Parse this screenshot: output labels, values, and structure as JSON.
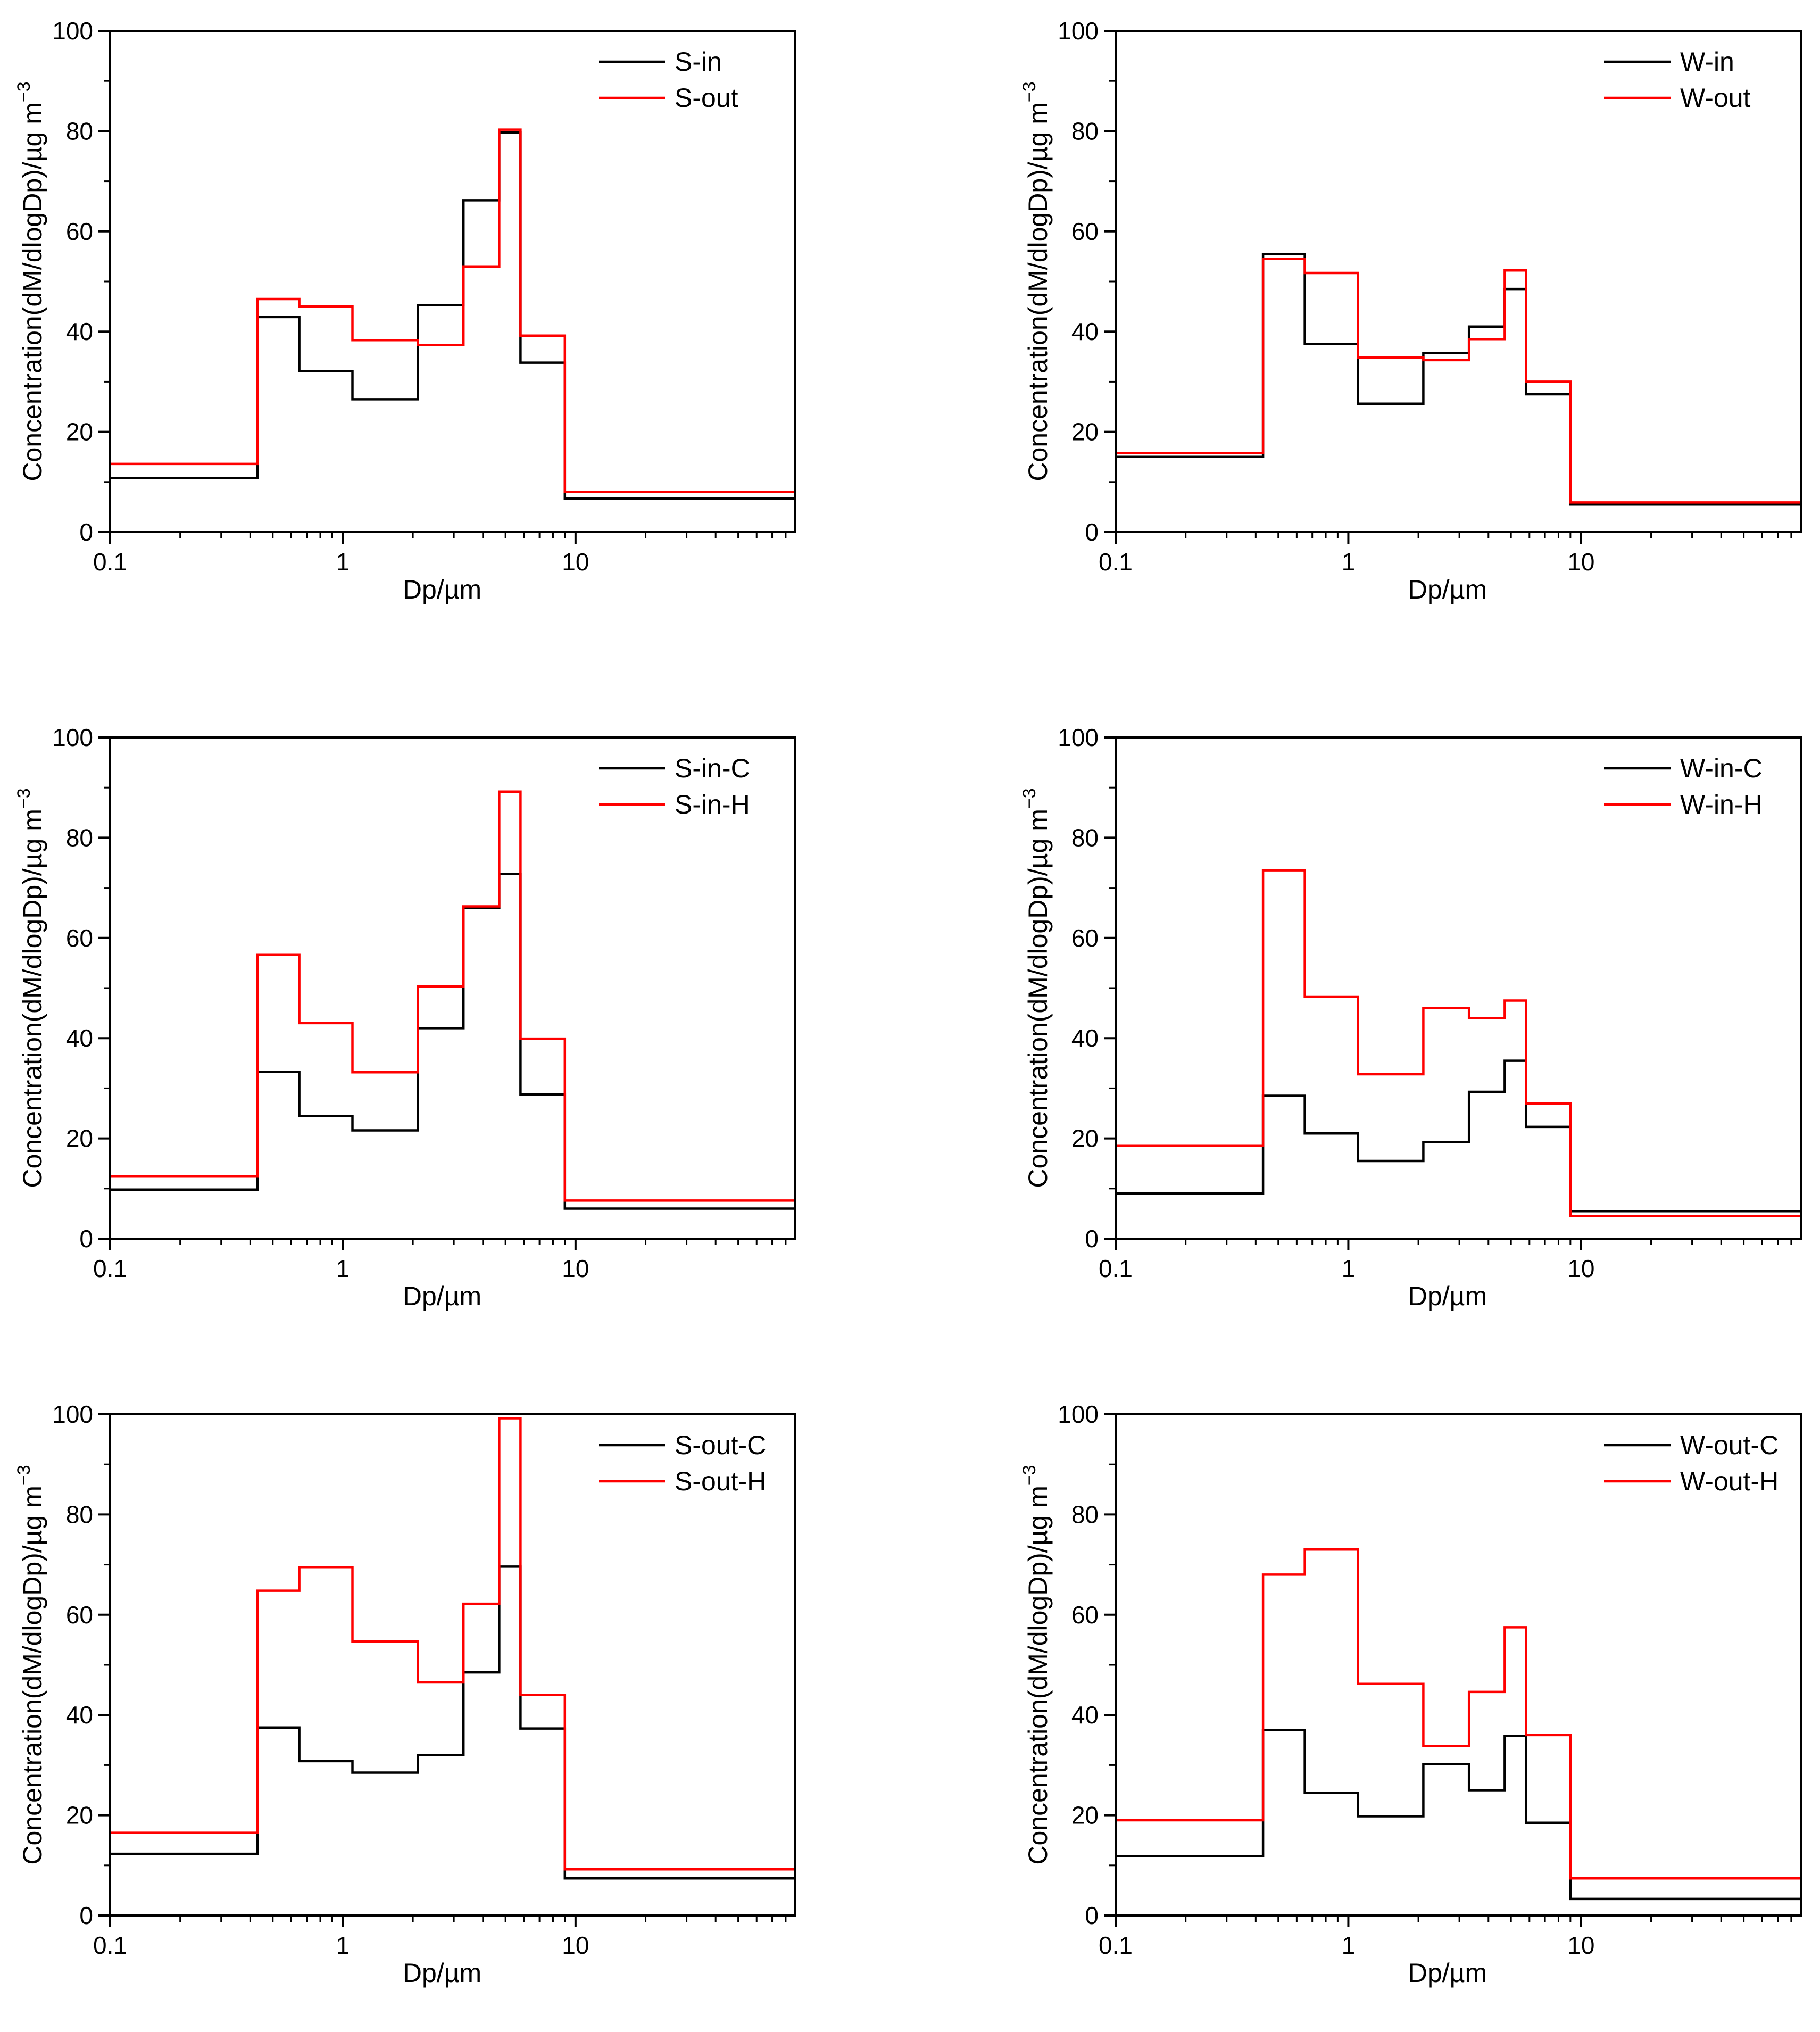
{
  "colors": {
    "black_series": "#000000",
    "red_series": "#ff0000",
    "axis": "#000000"
  },
  "chart_data": [
    {
      "id": "p1",
      "type": "line",
      "step": true,
      "x_scale": "log",
      "xlim": [
        0.1,
        88
      ],
      "ylim": [
        0,
        100
      ],
      "xticks": [
        0.1,
        1,
        10
      ],
      "xtick_labels": [
        "0.1",
        "1",
        "10"
      ],
      "yticks": [
        0,
        20,
        40,
        60,
        80,
        100
      ],
      "ytick_labels": [
        "0",
        "20",
        "40",
        "60",
        "80",
        "100"
      ],
      "xlabel": "Dp/µm",
      "ylabel": "Concentration(dM/dlogDp)/µg m",
      "ylabel_sup": "−3",
      "legend": "top-right",
      "bin_edges": [
        0.1,
        0.43,
        0.65,
        1.1,
        2.1,
        3.3,
        4.7,
        5.8,
        9.0,
        88
      ],
      "series": [
        {
          "name": "S-in",
          "color": "#000000",
          "values": [
            10.8,
            42.9,
            32.1,
            26.5,
            45.3,
            66.2,
            79.7,
            33.8,
            6.7
          ]
        },
        {
          "name": "S-out",
          "color": "#ff0000",
          "values": [
            13.6,
            46.5,
            45.0,
            38.3,
            37.3,
            53.0,
            80.3,
            39.2,
            8.0
          ]
        }
      ]
    },
    {
      "id": "p2",
      "type": "line",
      "step": true,
      "x_scale": "log",
      "xlim": [
        0.1,
        88
      ],
      "ylim": [
        0,
        100
      ],
      "xticks": [
        0.1,
        1,
        10
      ],
      "xtick_labels": [
        "0.1",
        "1",
        "10"
      ],
      "yticks": [
        0,
        20,
        40,
        60,
        80,
        100
      ],
      "ytick_labels": [
        "0",
        "20",
        "40",
        "60",
        "80",
        "100"
      ],
      "xlabel": "Dp/µm",
      "ylabel": "Concentration(dM/dlogDp)/µg m",
      "ylabel_sup": "−3",
      "legend": "top-right",
      "bin_edges": [
        0.1,
        0.43,
        0.65,
        1.1,
        2.1,
        3.3,
        4.7,
        5.8,
        9.0,
        88
      ],
      "series": [
        {
          "name": "W-in",
          "color": "#000000",
          "values": [
            15.0,
            55.5,
            37.5,
            25.6,
            35.7,
            41.0,
            48.5,
            27.5,
            5.5
          ]
        },
        {
          "name": "W-out",
          "color": "#ff0000",
          "values": [
            15.8,
            54.5,
            51.7,
            34.8,
            34.3,
            38.5,
            52.2,
            30.0,
            5.9
          ]
        }
      ]
    },
    {
      "id": "p3",
      "type": "line",
      "step": true,
      "x_scale": "log",
      "xlim": [
        0.1,
        88
      ],
      "ylim": [
        0,
        100
      ],
      "xticks": [
        0.1,
        1,
        10
      ],
      "xtick_labels": [
        "0.1",
        "1",
        "10"
      ],
      "yticks": [
        0,
        20,
        40,
        60,
        80,
        100
      ],
      "ytick_labels": [
        "0",
        "20",
        "40",
        "60",
        "80",
        "100"
      ],
      "xlabel": "Dp/µm",
      "ylabel": "Concentration(dM/dlogDp)/µg m",
      "ylabel_sup": "−3",
      "legend": "top-right",
      "bin_edges": [
        0.1,
        0.43,
        0.65,
        1.1,
        2.1,
        3.3,
        4.7,
        5.8,
        9.0,
        88
      ],
      "series": [
        {
          "name": "S-in-C",
          "color": "#000000",
          "values": [
            9.8,
            33.3,
            24.5,
            21.6,
            42.0,
            66.0,
            72.8,
            28.8,
            6.0
          ]
        },
        {
          "name": "S-in-H",
          "color": "#ff0000",
          "values": [
            12.4,
            56.6,
            43.0,
            33.2,
            50.3,
            66.3,
            89.2,
            39.9,
            7.6
          ]
        }
      ]
    },
    {
      "id": "p4",
      "type": "line",
      "step": true,
      "x_scale": "log",
      "xlim": [
        0.1,
        88
      ],
      "ylim": [
        0,
        100
      ],
      "xticks": [
        0.1,
        1,
        10
      ],
      "xtick_labels": [
        "0.1",
        "1",
        "10"
      ],
      "yticks": [
        0,
        20,
        40,
        60,
        80,
        100
      ],
      "ytick_labels": [
        "0",
        "20",
        "40",
        "60",
        "80",
        "100"
      ],
      "xlabel": "Dp/µm",
      "ylabel": "Concentration(dM/dlogDp)/µg m",
      "ylabel_sup": "−3",
      "legend": "top-right",
      "bin_edges": [
        0.1,
        0.43,
        0.65,
        1.1,
        2.1,
        3.3,
        4.7,
        5.8,
        9.0,
        88
      ],
      "series": [
        {
          "name": "W-in-C",
          "color": "#000000",
          "values": [
            9.0,
            28.5,
            21.0,
            15.5,
            19.3,
            29.3,
            35.5,
            22.3,
            5.5
          ]
        },
        {
          "name": "W-in-H",
          "color": "#ff0000",
          "values": [
            18.5,
            73.5,
            48.3,
            32.8,
            46.0,
            44.0,
            47.5,
            27.0,
            4.5
          ]
        }
      ]
    },
    {
      "id": "p5",
      "type": "line",
      "step": true,
      "x_scale": "log",
      "xlim": [
        0.1,
        88
      ],
      "ylim": [
        0,
        100
      ],
      "xticks": [
        0.1,
        1,
        10
      ],
      "xtick_labels": [
        "0.1",
        "1",
        "10"
      ],
      "yticks": [
        0,
        20,
        40,
        60,
        80,
        100
      ],
      "ytick_labels": [
        "0",
        "20",
        "40",
        "60",
        "80",
        "100"
      ],
      "xlabel": "Dp/µm",
      "ylabel": "Concentration(dM/dlogDp)/µg m",
      "ylabel_sup": "−3",
      "legend": "top-right",
      "bin_edges": [
        0.1,
        0.43,
        0.65,
        1.1,
        2.1,
        3.3,
        4.7,
        5.8,
        9.0,
        88
      ],
      "series": [
        {
          "name": "S-out-C",
          "color": "#000000",
          "values": [
            12.3,
            37.5,
            30.8,
            28.5,
            32.0,
            48.5,
            69.6,
            37.3,
            7.4
          ]
        },
        {
          "name": "S-out-H",
          "color": "#ff0000",
          "values": [
            16.5,
            64.8,
            69.5,
            54.7,
            46.5,
            62.2,
            99.2,
            44.0,
            9.2
          ]
        }
      ]
    },
    {
      "id": "p6",
      "type": "line",
      "step": true,
      "x_scale": "log",
      "xlim": [
        0.1,
        88
      ],
      "ylim": [
        0,
        100
      ],
      "xticks": [
        0.1,
        1,
        10
      ],
      "xtick_labels": [
        "0.1",
        "1",
        "10"
      ],
      "yticks": [
        0,
        20,
        40,
        60,
        80,
        100
      ],
      "ytick_labels": [
        "0",
        "20",
        "40",
        "60",
        "80",
        "100"
      ],
      "xlabel": "Dp/µm",
      "ylabel": "Concentration(dM/dlogDp)/µg m",
      "ylabel_sup": "−3",
      "legend": "top-right",
      "bin_edges": [
        0.1,
        0.43,
        0.65,
        1.1,
        2.1,
        3.3,
        4.7,
        5.8,
        9.0,
        88
      ],
      "series": [
        {
          "name": "W-out-C",
          "color": "#000000",
          "values": [
            11.8,
            37.0,
            24.5,
            19.8,
            30.2,
            25.0,
            35.8,
            18.5,
            3.3
          ]
        },
        {
          "name": "W-out-H",
          "color": "#ff0000",
          "values": [
            19.0,
            68.0,
            73.0,
            46.2,
            33.8,
            44.6,
            57.5,
            36.0,
            7.4
          ]
        }
      ]
    }
  ]
}
